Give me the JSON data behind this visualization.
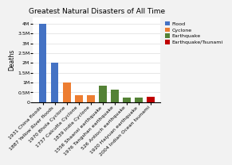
{
  "title": "Greatest Natural Disasters of All Time",
  "ylabel": "Deaths",
  "bars": [
    {
      "label": "1931 China floods",
      "value": 4000000,
      "color": "#4472c4",
      "type": "Flood"
    },
    {
      "label": "1887 Yellow River floods",
      "value": 2000000,
      "color": "#4472c4",
      "type": "Flood"
    },
    {
      "label": "1970 Bhola Cyclone",
      "value": 1000000,
      "color": "#ed7d31",
      "type": "Cyclone"
    },
    {
      "label": "1737 Calcutta Cyclone",
      "value": 350000,
      "color": "#ed7d31",
      "type": "Cyclone"
    },
    {
      "label": "1839 India Cyclone",
      "value": 350000,
      "color": "#ed7d31",
      "type": "Cyclone"
    },
    {
      "label": "1556 Shaanxi earthquake",
      "value": 830000,
      "color": "#548235",
      "type": "Earthquake"
    },
    {
      "label": "1976 Tangshan earthquake",
      "value": 655000,
      "color": "#548235",
      "type": "Earthquake"
    },
    {
      "label": "526 Antioch earthquake",
      "value": 250000,
      "color": "#548235",
      "type": "Earthquake"
    },
    {
      "label": "1920 Haiyuan earthquake",
      "value": 240000,
      "color": "#548235",
      "type": "Earthquake"
    },
    {
      "label": "2004 Indian Ocean tsunami",
      "value": 280000,
      "color": "#c00000",
      "type": "Earthquake/Tsunami"
    }
  ],
  "legend": [
    {
      "label": "Flood",
      "color": "#4472c4"
    },
    {
      "label": "Cyclone",
      "color": "#ed7d31"
    },
    {
      "label": "Earthquake",
      "color": "#548235"
    },
    {
      "label": "Earthquake/Tsunami",
      "color": "#c00000"
    }
  ],
  "yticks": [
    0,
    500000,
    1000000,
    1500000,
    2000000,
    2500000,
    3000000,
    3500000,
    4000000
  ],
  "ytick_labels": [
    "0",
    "0.5M",
    "1M",
    "1.5M",
    "2M",
    "2.5M",
    "3M",
    "3.5M",
    "4M"
  ],
  "ylim": [
    0,
    4300000
  ],
  "background_color": "#f2f2f2",
  "plot_background": "#ffffff",
  "title_fontsize": 6.5,
  "axis_fontsize": 5.5,
  "tick_fontsize": 4.5,
  "legend_fontsize": 4.5
}
